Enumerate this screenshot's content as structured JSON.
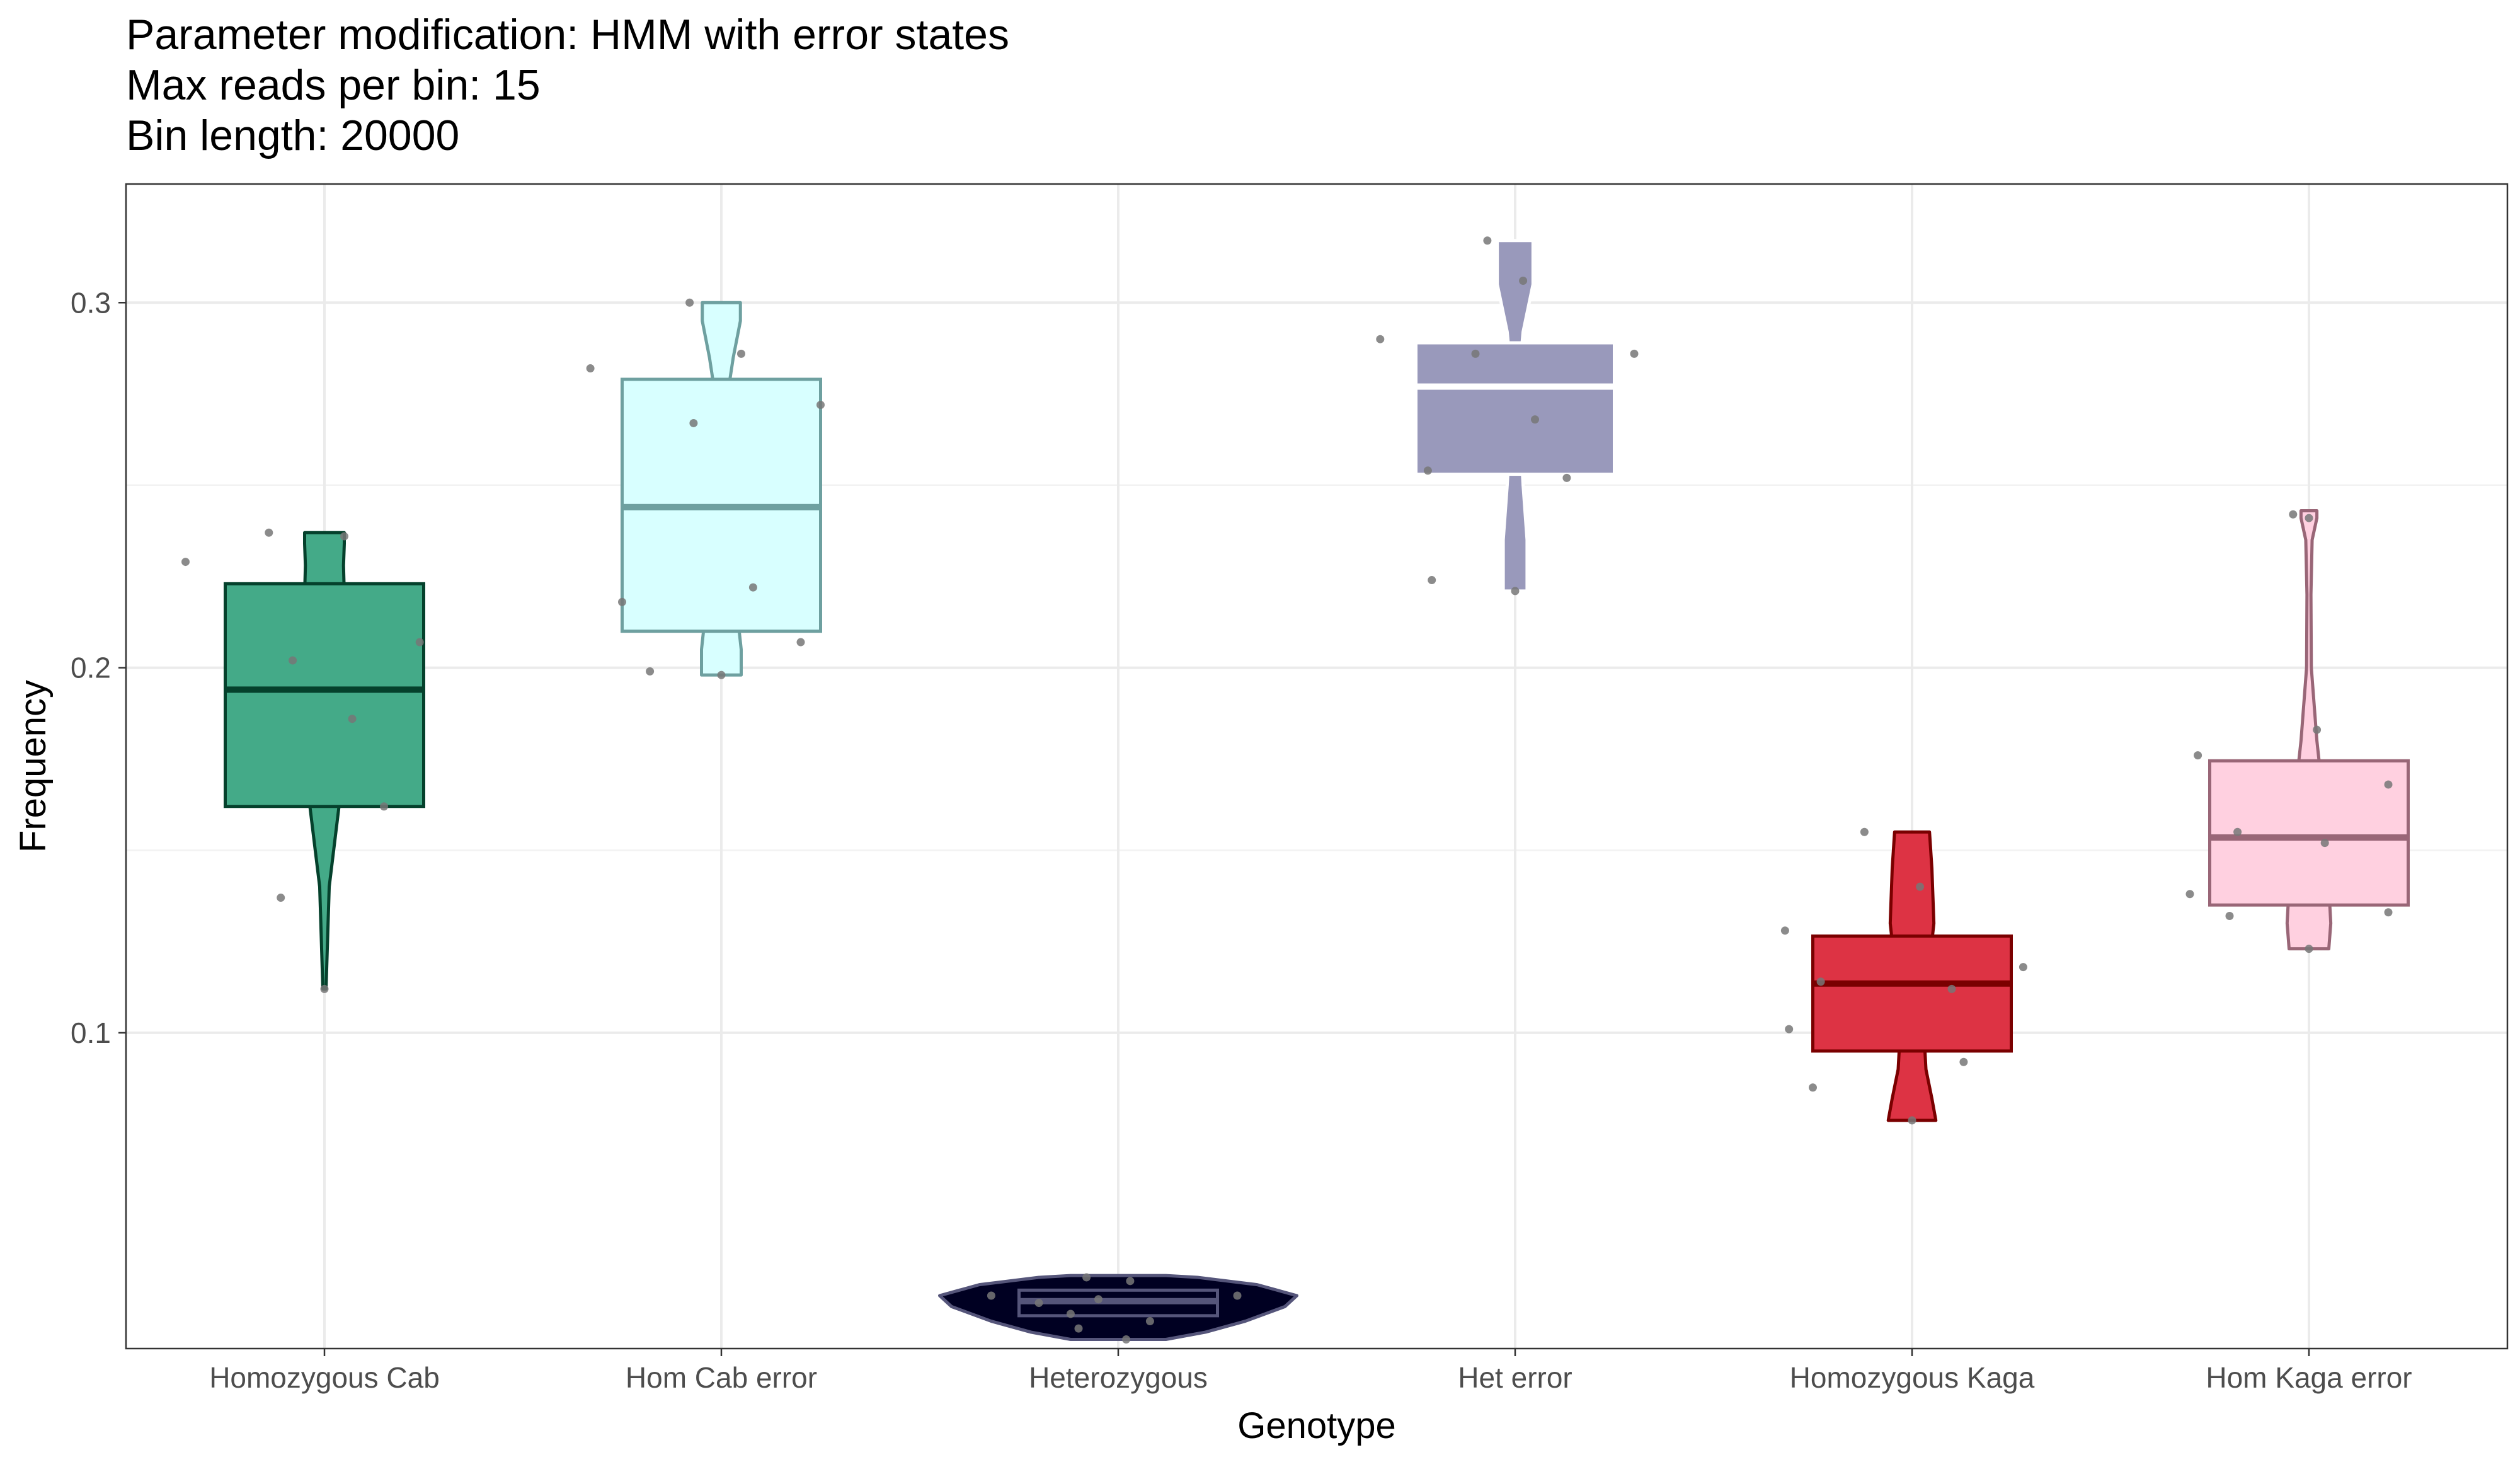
{
  "chart_data": {
    "type": "violin-box",
    "title_lines": [
      "Parameter modification: HMM with error states",
      "Max reads per bin: 15",
      "Bin length: 20000"
    ],
    "xlabel": "Genotype",
    "ylabel": "Frequency",
    "ylim": [
      0.0135,
      0.3325
    ],
    "yticks": [
      0.1,
      0.2,
      0.3
    ],
    "ytick_labels": [
      "0.1",
      "0.2",
      "0.3"
    ],
    "grid": true,
    "legend": "none",
    "categories": [
      "Homozygous Cab",
      "Hom Cab error",
      "Heterozygous",
      "Het error",
      "Homozygous Kaga",
      "Hom Kaga error"
    ],
    "groups": [
      {
        "category": "Homozygous Cab",
        "fill": "#44aa88",
        "stroke": "#05412c",
        "box": {
          "q1": 0.162,
          "median": 0.194,
          "q3": 0.223
        },
        "violin": [
          [
            0.112,
            0.004
          ],
          [
            0.14,
            0.012
          ],
          [
            0.165,
            0.04
          ],
          [
            0.2,
            0.06
          ],
          [
            0.22,
            0.05
          ],
          [
            0.228,
            0.048
          ],
          [
            0.234,
            0.05
          ],
          [
            0.237,
            0.05
          ]
        ],
        "points": [
          [
            -0.35,
            0.229
          ],
          [
            -0.14,
            0.237
          ],
          [
            -0.08,
            0.202
          ],
          [
            -0.11,
            0.137
          ],
          [
            0.0,
            0.112
          ],
          [
            0.05,
            0.236
          ],
          [
            0.07,
            0.186
          ],
          [
            0.15,
            0.162
          ],
          [
            0.24,
            0.207
          ]
        ]
      },
      {
        "category": "Hom Cab error",
        "fill": "#d8ffff",
        "stroke": "#6ea0a0",
        "box": {
          "q1": 0.21,
          "median": 0.244,
          "q3": 0.279
        },
        "violin": [
          [
            0.198,
            0.05
          ],
          [
            0.205,
            0.05
          ],
          [
            0.215,
            0.04
          ],
          [
            0.25,
            0.02
          ],
          [
            0.275,
            0.016
          ],
          [
            0.285,
            0.03
          ],
          [
            0.295,
            0.048
          ],
          [
            0.3,
            0.048
          ]
        ],
        "points": [
          [
            -0.33,
            0.282
          ],
          [
            -0.25,
            0.218
          ],
          [
            -0.18,
            0.199
          ],
          [
            -0.08,
            0.3
          ],
          [
            -0.07,
            0.267
          ],
          [
            0.0,
            0.198
          ],
          [
            0.05,
            0.286
          ],
          [
            0.08,
            0.222
          ],
          [
            0.2,
            0.207
          ],
          [
            0.25,
            0.272
          ]
        ]
      },
      {
        "category": "Heterozygous",
        "fill": "#000022",
        "stroke": "#55557a",
        "box": {
          "q1": 0.0225,
          "median": 0.0265,
          "q3": 0.0295
        },
        "violin": [
          [
            0.016,
            0.12
          ],
          [
            0.018,
            0.22
          ],
          [
            0.021,
            0.32
          ],
          [
            0.025,
            0.42
          ],
          [
            0.028,
            0.45
          ],
          [
            0.031,
            0.35
          ],
          [
            0.033,
            0.2
          ],
          [
            0.0335,
            0.12
          ]
        ],
        "points": [
          [
            -0.32,
            0.028
          ],
          [
            -0.2,
            0.026
          ],
          [
            -0.12,
            0.023
          ],
          [
            -0.1,
            0.019
          ],
          [
            -0.08,
            0.033
          ],
          [
            -0.05,
            0.027
          ],
          [
            0.02,
            0.016
          ],
          [
            0.03,
            0.032
          ],
          [
            0.08,
            0.021
          ],
          [
            0.3,
            0.028
          ]
        ]
      },
      {
        "category": "Het error",
        "fill": "#9999bb",
        "stroke": "#ffffff",
        "box": {
          "q1": 0.253,
          "median": 0.277,
          "q3": 0.289
        },
        "violin": [
          [
            0.221,
            0.03
          ],
          [
            0.235,
            0.03
          ],
          [
            0.25,
            0.02
          ],
          [
            0.27,
            0.01
          ],
          [
            0.28,
            0.01
          ],
          [
            0.292,
            0.02
          ],
          [
            0.305,
            0.045
          ],
          [
            0.317,
            0.045
          ]
        ],
        "points": [
          [
            -0.34,
            0.29
          ],
          [
            -0.21,
            0.224
          ],
          [
            -0.22,
            0.254
          ],
          [
            -0.1,
            0.286
          ],
          [
            -0.07,
            0.317
          ],
          [
            0.0,
            0.221
          ],
          [
            0.02,
            0.306
          ],
          [
            0.05,
            0.268
          ],
          [
            0.13,
            0.252
          ],
          [
            0.3,
            0.286
          ]
        ]
      },
      {
        "category": "Homozygous Kaga",
        "fill": "#dd3344",
        "stroke": "#7a0000",
        "box": {
          "q1": 0.095,
          "median": 0.1135,
          "q3": 0.1265
        },
        "violin": [
          [
            0.076,
            0.06
          ],
          [
            0.082,
            0.05
          ],
          [
            0.09,
            0.035
          ],
          [
            0.1,
            0.03
          ],
          [
            0.115,
            0.04
          ],
          [
            0.13,
            0.055
          ],
          [
            0.145,
            0.05
          ],
          [
            0.155,
            0.044
          ]
        ],
        "points": [
          [
            -0.32,
            0.128
          ],
          [
            -0.31,
            0.101
          ],
          [
            -0.25,
            0.085
          ],
          [
            -0.23,
            0.114
          ],
          [
            -0.12,
            0.155
          ],
          [
            0.0,
            0.076
          ],
          [
            0.02,
            0.14
          ],
          [
            0.1,
            0.112
          ],
          [
            0.13,
            0.092
          ],
          [
            0.28,
            0.118
          ]
        ]
      },
      {
        "category": "Hom Kaga error",
        "fill": "#ffd0e0",
        "stroke": "#996677",
        "box": {
          "q1": 0.135,
          "median": 0.1535,
          "q3": 0.1745
        },
        "violin": [
          [
            0.123,
            0.05
          ],
          [
            0.13,
            0.055
          ],
          [
            0.14,
            0.05
          ],
          [
            0.16,
            0.04
          ],
          [
            0.18,
            0.02
          ],
          [
            0.2,
            0.006
          ],
          [
            0.22,
            0.005
          ],
          [
            0.235,
            0.008
          ],
          [
            0.241,
            0.02
          ],
          [
            0.243,
            0.02
          ]
        ],
        "points": [
          [
            -0.3,
            0.138
          ],
          [
            -0.28,
            0.176
          ],
          [
            -0.2,
            0.132
          ],
          [
            -0.18,
            0.155
          ],
          [
            -0.04,
            0.242
          ],
          [
            0.0,
            0.123
          ],
          [
            0.0,
            0.241
          ],
          [
            0.02,
            0.183
          ],
          [
            0.04,
            0.152
          ],
          [
            0.2,
            0.168
          ],
          [
            0.2,
            0.133
          ]
        ]
      }
    ]
  }
}
